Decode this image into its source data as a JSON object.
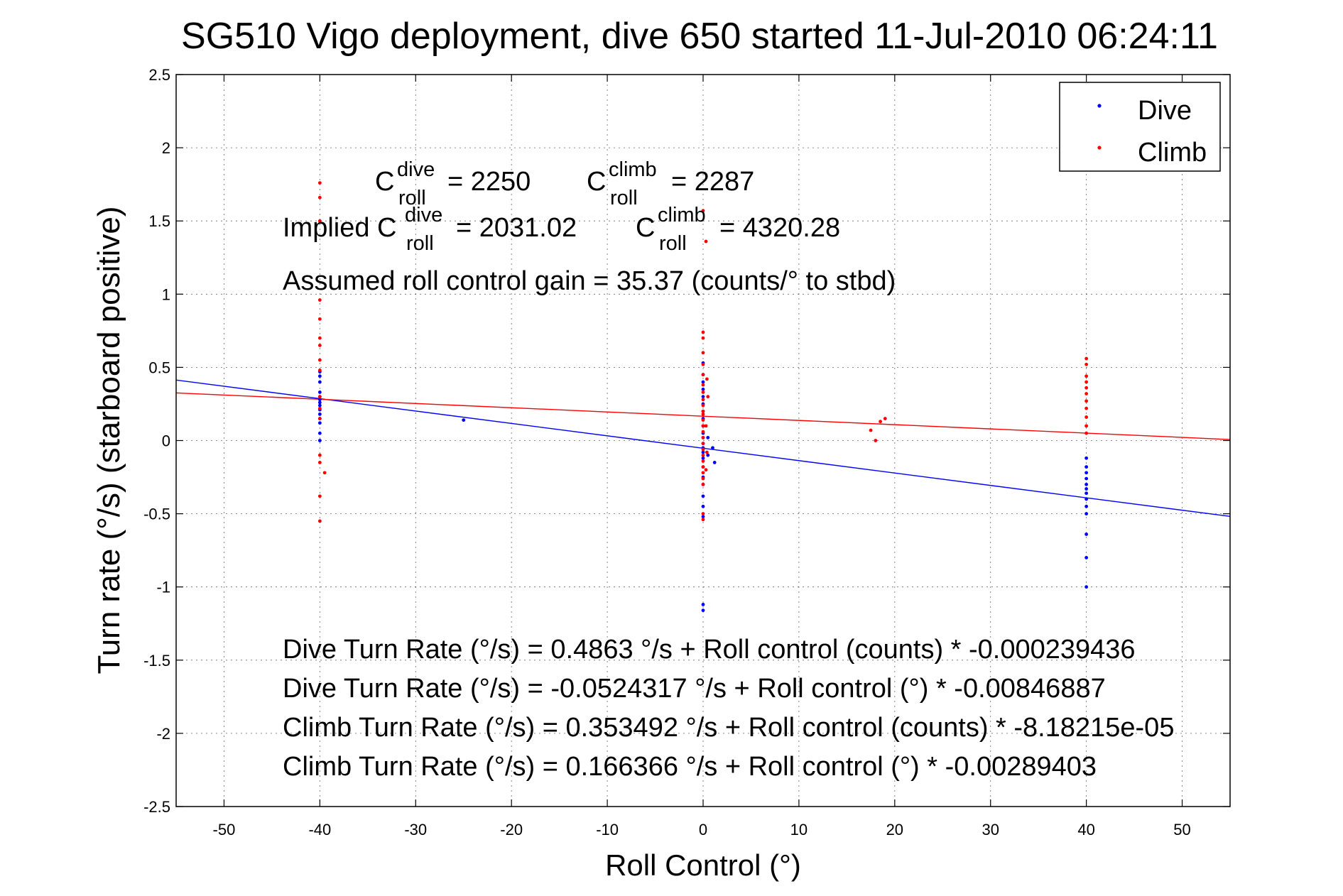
{
  "chart_data": {
    "type": "scatter",
    "title": "SG510 Vigo deployment, dive 650 started 11-Jul-2010 06:24:11",
    "xlabel": "Roll Control (°)",
    "ylabel": "Turn rate (°/s)  (starboard positive)",
    "xlim": [
      -55,
      55
    ],
    "ylim": [
      -2.5,
      2.5
    ],
    "x_ticks": [
      -50,
      -40,
      -30,
      -20,
      -10,
      0,
      10,
      20,
      30,
      40,
      50
    ],
    "y_ticks": [
      -2.5,
      -2,
      -1.5,
      -1,
      -0.5,
      0,
      0.5,
      1,
      1.5,
      2,
      2.5
    ],
    "x_tick_labels": [
      "-50",
      "-40",
      "-30",
      "-20",
      "-10",
      "0",
      "10",
      "20",
      "30",
      "40",
      "50"
    ],
    "y_tick_labels": [
      "-2.5",
      "-2",
      "-1.5",
      "-1",
      "-0.5",
      "0",
      "0.5",
      "1",
      "1.5",
      "2",
      "2.5"
    ],
    "grid": true,
    "legend_position": "top-right",
    "series": [
      {
        "name": "Dive",
        "color": "#0000ff",
        "points": [
          [
            -40,
            0.47
          ],
          [
            -40,
            0.44
          ],
          [
            -40,
            0.4
          ],
          [
            -40,
            0.33
          ],
          [
            -40,
            0.3
          ],
          [
            -40,
            0.28
          ],
          [
            -40,
            0.26
          ],
          [
            -40,
            0.24
          ],
          [
            -40,
            0.21
          ],
          [
            -40,
            0.18
          ],
          [
            -40,
            0.15
          ],
          [
            -40,
            0.12
          ],
          [
            -40,
            0.05
          ],
          [
            -40,
            0.0
          ],
          [
            -25,
            0.14
          ],
          [
            0,
            0.53
          ],
          [
            0,
            0.45
          ],
          [
            0,
            0.4
          ],
          [
            0,
            0.35
          ],
          [
            0,
            0.3
          ],
          [
            0,
            0.25
          ],
          [
            0,
            0.2
          ],
          [
            0,
            0.15
          ],
          [
            0,
            0.1
          ],
          [
            0,
            0.05
          ],
          [
            0,
            0.02
          ],
          [
            0,
            -0.02
          ],
          [
            0,
            -0.05
          ],
          [
            0,
            -0.08
          ],
          [
            0,
            -0.12
          ],
          [
            0,
            -0.18
          ],
          [
            0,
            -0.25
          ],
          [
            0,
            -0.3
          ],
          [
            0,
            -0.38
          ],
          [
            0,
            -0.45
          ],
          [
            0,
            -0.52
          ],
          [
            0.5,
            0.02
          ],
          [
            1,
            -0.05
          ],
          [
            1.2,
            -0.15
          ],
          [
            0.5,
            -0.1
          ],
          [
            0,
            -1.12
          ],
          [
            0,
            -1.16
          ],
          [
            40,
            -0.12
          ],
          [
            40,
            -0.18
          ],
          [
            40,
            -0.22
          ],
          [
            40,
            -0.26
          ],
          [
            40,
            -0.3
          ],
          [
            40,
            -0.33
          ],
          [
            40,
            -0.36
          ],
          [
            40,
            -0.4
          ],
          [
            40,
            -0.45
          ],
          [
            40,
            -0.5
          ],
          [
            40,
            -0.64
          ],
          [
            40,
            -0.8
          ],
          [
            40,
            -1.0
          ]
        ],
        "fit": {
          "intercept": -0.0524317,
          "slope": -0.00846887
        }
      },
      {
        "name": "Climb",
        "color": "#ff0000",
        "points": [
          [
            -40,
            1.76
          ],
          [
            -40,
            1.66
          ],
          [
            -40,
            1.5
          ],
          [
            -40,
            0.96
          ],
          [
            -40,
            0.83
          ],
          [
            -40,
            0.7
          ],
          [
            -40,
            0.65
          ],
          [
            -40,
            0.55
          ],
          [
            -40,
            0.48
          ],
          [
            -40,
            0.3
          ],
          [
            -40,
            0.22
          ],
          [
            -40,
            0.15
          ],
          [
            -40,
            -0.1
          ],
          [
            -40,
            -0.15
          ],
          [
            -39.5,
            -0.22
          ],
          [
            -40,
            -0.38
          ],
          [
            -40,
            -0.55
          ],
          [
            0,
            1.57
          ],
          [
            0.3,
            1.36
          ],
          [
            0,
            0.74
          ],
          [
            0,
            0.7
          ],
          [
            0,
            0.6
          ],
          [
            0,
            0.52
          ],
          [
            0,
            0.45
          ],
          [
            0,
            0.38
          ],
          [
            0,
            0.33
          ],
          [
            0,
            0.28
          ],
          [
            0,
            0.24
          ],
          [
            0,
            0.2
          ],
          [
            0,
            0.18
          ],
          [
            0,
            0.14
          ],
          [
            0,
            0.1
          ],
          [
            0,
            0.06
          ],
          [
            0,
            0.02
          ],
          [
            0,
            -0.02
          ],
          [
            0,
            -0.06
          ],
          [
            0,
            -0.1
          ],
          [
            0,
            -0.14
          ],
          [
            0,
            -0.18
          ],
          [
            0,
            -0.22
          ],
          [
            0,
            -0.26
          ],
          [
            0,
            -0.3
          ],
          [
            0,
            -0.5
          ],
          [
            0,
            -0.54
          ],
          [
            0.4,
            0.42
          ],
          [
            0.5,
            0.3
          ],
          [
            0.3,
            0.1
          ],
          [
            0.4,
            -0.08
          ],
          [
            0.3,
            -0.2
          ],
          [
            17.5,
            0.07
          ],
          [
            18,
            0.0
          ],
          [
            18.5,
            0.13
          ],
          [
            19,
            0.15
          ],
          [
            40,
            0.56
          ],
          [
            40,
            0.52
          ],
          [
            40,
            0.44
          ],
          [
            40,
            0.4
          ],
          [
            40,
            0.36
          ],
          [
            40,
            0.32
          ],
          [
            40,
            0.27
          ],
          [
            40,
            0.22
          ],
          [
            40,
            0.16
          ],
          [
            40,
            0.1
          ],
          [
            40,
            0.05
          ]
        ],
        "fit": {
          "intercept": 0.166366,
          "slope": -0.00289403
        }
      }
    ],
    "annotations": {
      "c_roll_dive": "= 2250",
      "c_roll_climb": "= 2287",
      "implied_prefix": "Implied C",
      "implied_dive": "= 2031.02",
      "implied_climb": "= 4320.28",
      "c_letter": "C",
      "sup_dive": "dive",
      "sup_climb": "climb",
      "sub_roll": "roll",
      "gain": "Assumed roll control gain = 35.37 (counts/° to stbd)",
      "eq1": "Dive Turn Rate (°/s) = 0.4863 °/s + Roll control (counts) * -0.000239436",
      "eq2": "Dive Turn Rate (°/s) = -0.0524317 °/s + Roll control (°) * -0.00846887",
      "eq3": "Climb Turn Rate (°/s) = 0.353492 °/s + Roll control (counts) * -8.18215e-05",
      "eq4": "Climb Turn Rate (°/s) = 0.166366 °/s + Roll control (°) * -0.00289403"
    }
  }
}
